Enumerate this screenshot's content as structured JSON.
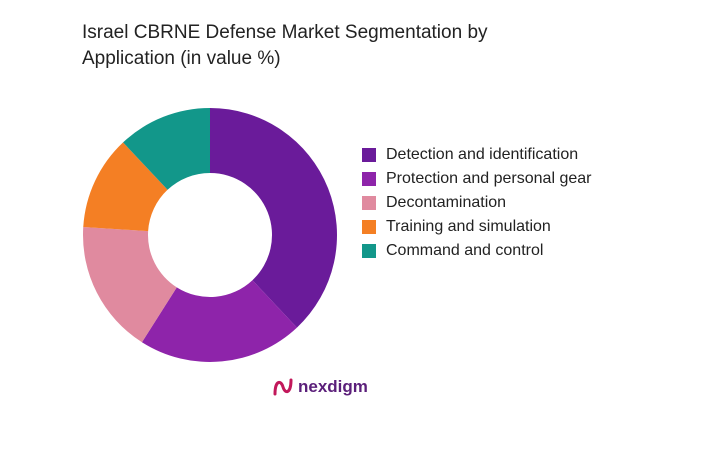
{
  "chart_data": {
    "type": "donut",
    "title": "Israel CBRNE Defense Market Segmentation by Application (in value %)",
    "categories": [
      "Detection and identification",
      "Protection and personal gear",
      "Decontamination",
      "Training and simulation",
      "Command and control"
    ],
    "values": [
      38,
      21,
      17,
      12,
      12
    ],
    "colors": [
      "#6a1b9a",
      "#8e24aa",
      "#e08a9f",
      "#f47f24",
      "#12978a"
    ],
    "legend": "right"
  },
  "logo": "nexdigm"
}
